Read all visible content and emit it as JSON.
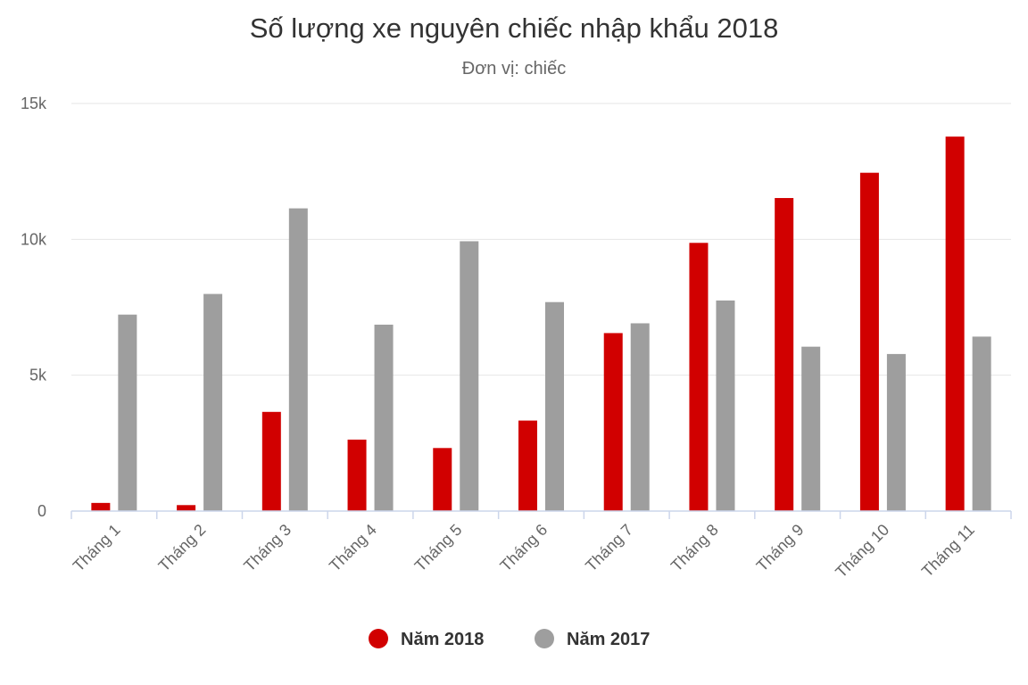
{
  "chart_data": {
    "type": "bar",
    "title": "Số lượng xe nguyên chiếc nhập khẩu 2018",
    "subtitle": "Đơn vị: chiếc",
    "xlabel": "",
    "ylabel": "",
    "categories": [
      "Tháng 1",
      "Tháng 2",
      "Tháng 3",
      "Tháng 4",
      "Tháng 5",
      "Tháng 6",
      "Tháng 7",
      "Tháng 8",
      "Tháng 9",
      "Tháng 10",
      "Tháng 11"
    ],
    "series": [
      {
        "name": "Năm 2018",
        "color": "#d10000",
        "values": [
          300,
          220,
          3650,
          2630,
          2320,
          3330,
          6550,
          9870,
          11520,
          12450,
          13780
        ]
      },
      {
        "name": "Năm 2017",
        "color": "#9e9e9e",
        "values": [
          7230,
          7990,
          11140,
          6860,
          9930,
          7690,
          6910,
          7750,
          6050,
          5780,
          6420
        ]
      }
    ],
    "ylim": [
      0,
      15000
    ],
    "yticks": [
      {
        "value": 0,
        "label": "0"
      },
      {
        "value": 5000,
        "label": "5k"
      },
      {
        "value": 10000,
        "label": "10k"
      },
      {
        "value": 15000,
        "label": "15k"
      }
    ],
    "grid": true,
    "legend_position": "bottom-center"
  }
}
